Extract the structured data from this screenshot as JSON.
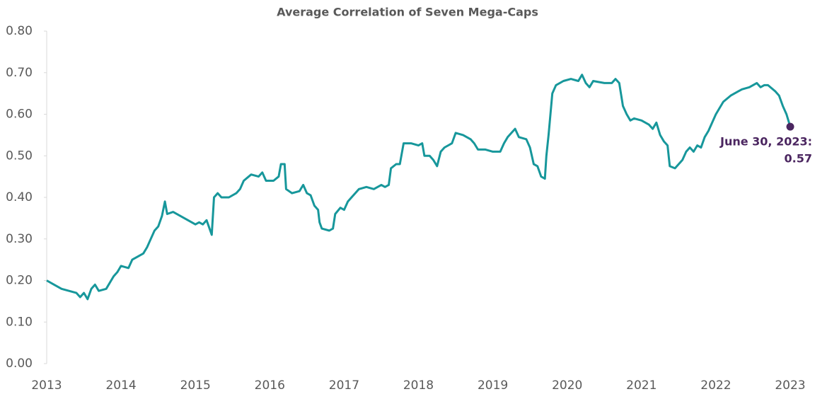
{
  "chart_data": {
    "type": "line",
    "title": "Average Correlation of Seven Mega-Caps",
    "x": [
      2013.0,
      2013.1,
      2013.2,
      2013.3,
      2013.4,
      2013.45,
      2013.5,
      2013.55,
      2013.6,
      2013.65,
      2013.7,
      2013.8,
      2013.9,
      2013.95,
      2014.0,
      2014.1,
      2014.15,
      2014.2,
      2014.3,
      2014.35,
      2014.4,
      2014.45,
      2014.5,
      2014.55,
      2014.59,
      2014.62,
      2014.7,
      2014.8,
      2014.9,
      2015.0,
      2015.05,
      2015.1,
      2015.15,
      2015.2,
      2015.22,
      2015.25,
      2015.3,
      2015.35,
      2015.45,
      2015.55,
      2015.6,
      2015.65,
      2015.75,
      2015.85,
      2015.9,
      2015.95,
      2016.05,
      2016.12,
      2016.15,
      2016.2,
      2016.22,
      2016.3,
      2016.4,
      2016.45,
      2016.5,
      2016.55,
      2016.6,
      2016.65,
      2016.67,
      2016.7,
      2016.8,
      2016.85,
      2016.88,
      2016.95,
      2017.0,
      2017.05,
      2017.1,
      2017.2,
      2017.3,
      2017.4,
      2017.5,
      2017.55,
      2017.6,
      2017.63,
      2017.7,
      2017.75,
      2017.8,
      2017.9,
      2018.0,
      2018.05,
      2018.08,
      2018.15,
      2018.2,
      2018.25,
      2018.3,
      2018.35,
      2018.45,
      2018.5,
      2018.6,
      2018.7,
      2018.75,
      2018.8,
      2018.9,
      2019.0,
      2019.1,
      2019.15,
      2019.2,
      2019.25,
      2019.3,
      2019.35,
      2019.45,
      2019.5,
      2019.55,
      2019.6,
      2019.65,
      2019.7,
      2019.72,
      2019.75,
      2019.8,
      2019.85,
      2019.95,
      2020.05,
      2020.15,
      2020.2,
      2020.25,
      2020.3,
      2020.35,
      2020.5,
      2020.6,
      2020.65,
      2020.7,
      2020.75,
      2020.8,
      2020.85,
      2020.9,
      2021.0,
      2021.1,
      2021.15,
      2021.2,
      2021.25,
      2021.3,
      2021.35,
      2021.38,
      2021.45,
      2021.55,
      2021.6,
      2021.65,
      2021.7,
      2021.75,
      2021.8,
      2021.85,
      2021.9,
      2022.0,
      2022.1,
      2022.2,
      2022.3,
      2022.35,
      2022.45,
      2022.55,
      2022.6,
      2022.65,
      2022.7,
      2022.8,
      2022.85,
      2022.9,
      2022.95,
      2023.0
    ],
    "values": [
      0.2,
      0.19,
      0.18,
      0.175,
      0.17,
      0.16,
      0.17,
      0.155,
      0.18,
      0.19,
      0.175,
      0.18,
      0.21,
      0.22,
      0.235,
      0.23,
      0.25,
      0.255,
      0.265,
      0.28,
      0.3,
      0.32,
      0.33,
      0.355,
      0.39,
      0.36,
      0.365,
      0.355,
      0.345,
      0.335,
      0.34,
      0.335,
      0.345,
      0.32,
      0.31,
      0.4,
      0.41,
      0.4,
      0.4,
      0.41,
      0.42,
      0.44,
      0.455,
      0.45,
      0.46,
      0.44,
      0.44,
      0.45,
      0.48,
      0.48,
      0.42,
      0.41,
      0.415,
      0.43,
      0.41,
      0.405,
      0.38,
      0.37,
      0.34,
      0.325,
      0.32,
      0.325,
      0.36,
      0.375,
      0.37,
      0.39,
      0.4,
      0.42,
      0.425,
      0.42,
      0.43,
      0.425,
      0.43,
      0.47,
      0.48,
      0.48,
      0.53,
      0.53,
      0.525,
      0.53,
      0.5,
      0.5,
      0.49,
      0.475,
      0.51,
      0.52,
      0.53,
      0.555,
      0.55,
      0.54,
      0.53,
      0.515,
      0.515,
      0.51,
      0.51,
      0.53,
      0.545,
      0.555,
      0.565,
      0.545,
      0.54,
      0.52,
      0.48,
      0.475,
      0.45,
      0.445,
      0.5,
      0.55,
      0.65,
      0.67,
      0.68,
      0.685,
      0.68,
      0.695,
      0.675,
      0.665,
      0.68,
      0.675,
      0.675,
      0.685,
      0.675,
      0.62,
      0.6,
      0.585,
      0.59,
      0.585,
      0.575,
      0.565,
      0.58,
      0.55,
      0.535,
      0.525,
      0.475,
      0.47,
      0.49,
      0.51,
      0.52,
      0.51,
      0.525,
      0.52,
      0.545,
      0.56,
      0.6,
      0.63,
      0.645,
      0.655,
      0.66,
      0.665,
      0.675,
      0.665,
      0.67,
      0.67,
      0.655,
      0.645,
      0.62,
      0.6,
      0.57
    ],
    "color": "#17979b",
    "xlim": [
      2013,
      2023
    ],
    "xticks": [
      2013,
      2014,
      2015,
      2016,
      2017,
      2018,
      2019,
      2020,
      2021,
      2022,
      2023
    ],
    "ylim": [
      0,
      0.8
    ],
    "yticks": [
      {
        "value": 0,
        "label": "0.00"
      },
      {
        "value": 0.1,
        "label": "0.10"
      },
      {
        "value": 0.2,
        "label": "0.20"
      },
      {
        "value": 0.3,
        "label": "0.30"
      },
      {
        "value": 0.4,
        "label": "0.40"
      },
      {
        "value": 0.5,
        "label": "0.50"
      },
      {
        "value": 0.6,
        "label": "0.60"
      },
      {
        "value": 0.7,
        "label": "0.70"
      },
      {
        "value": 0.8,
        "label": "0.80"
      }
    ],
    "annotation": {
      "text": "June 30, 2023:",
      "x": 2023,
      "value": 0.57,
      "color": "#4b2660"
    }
  }
}
